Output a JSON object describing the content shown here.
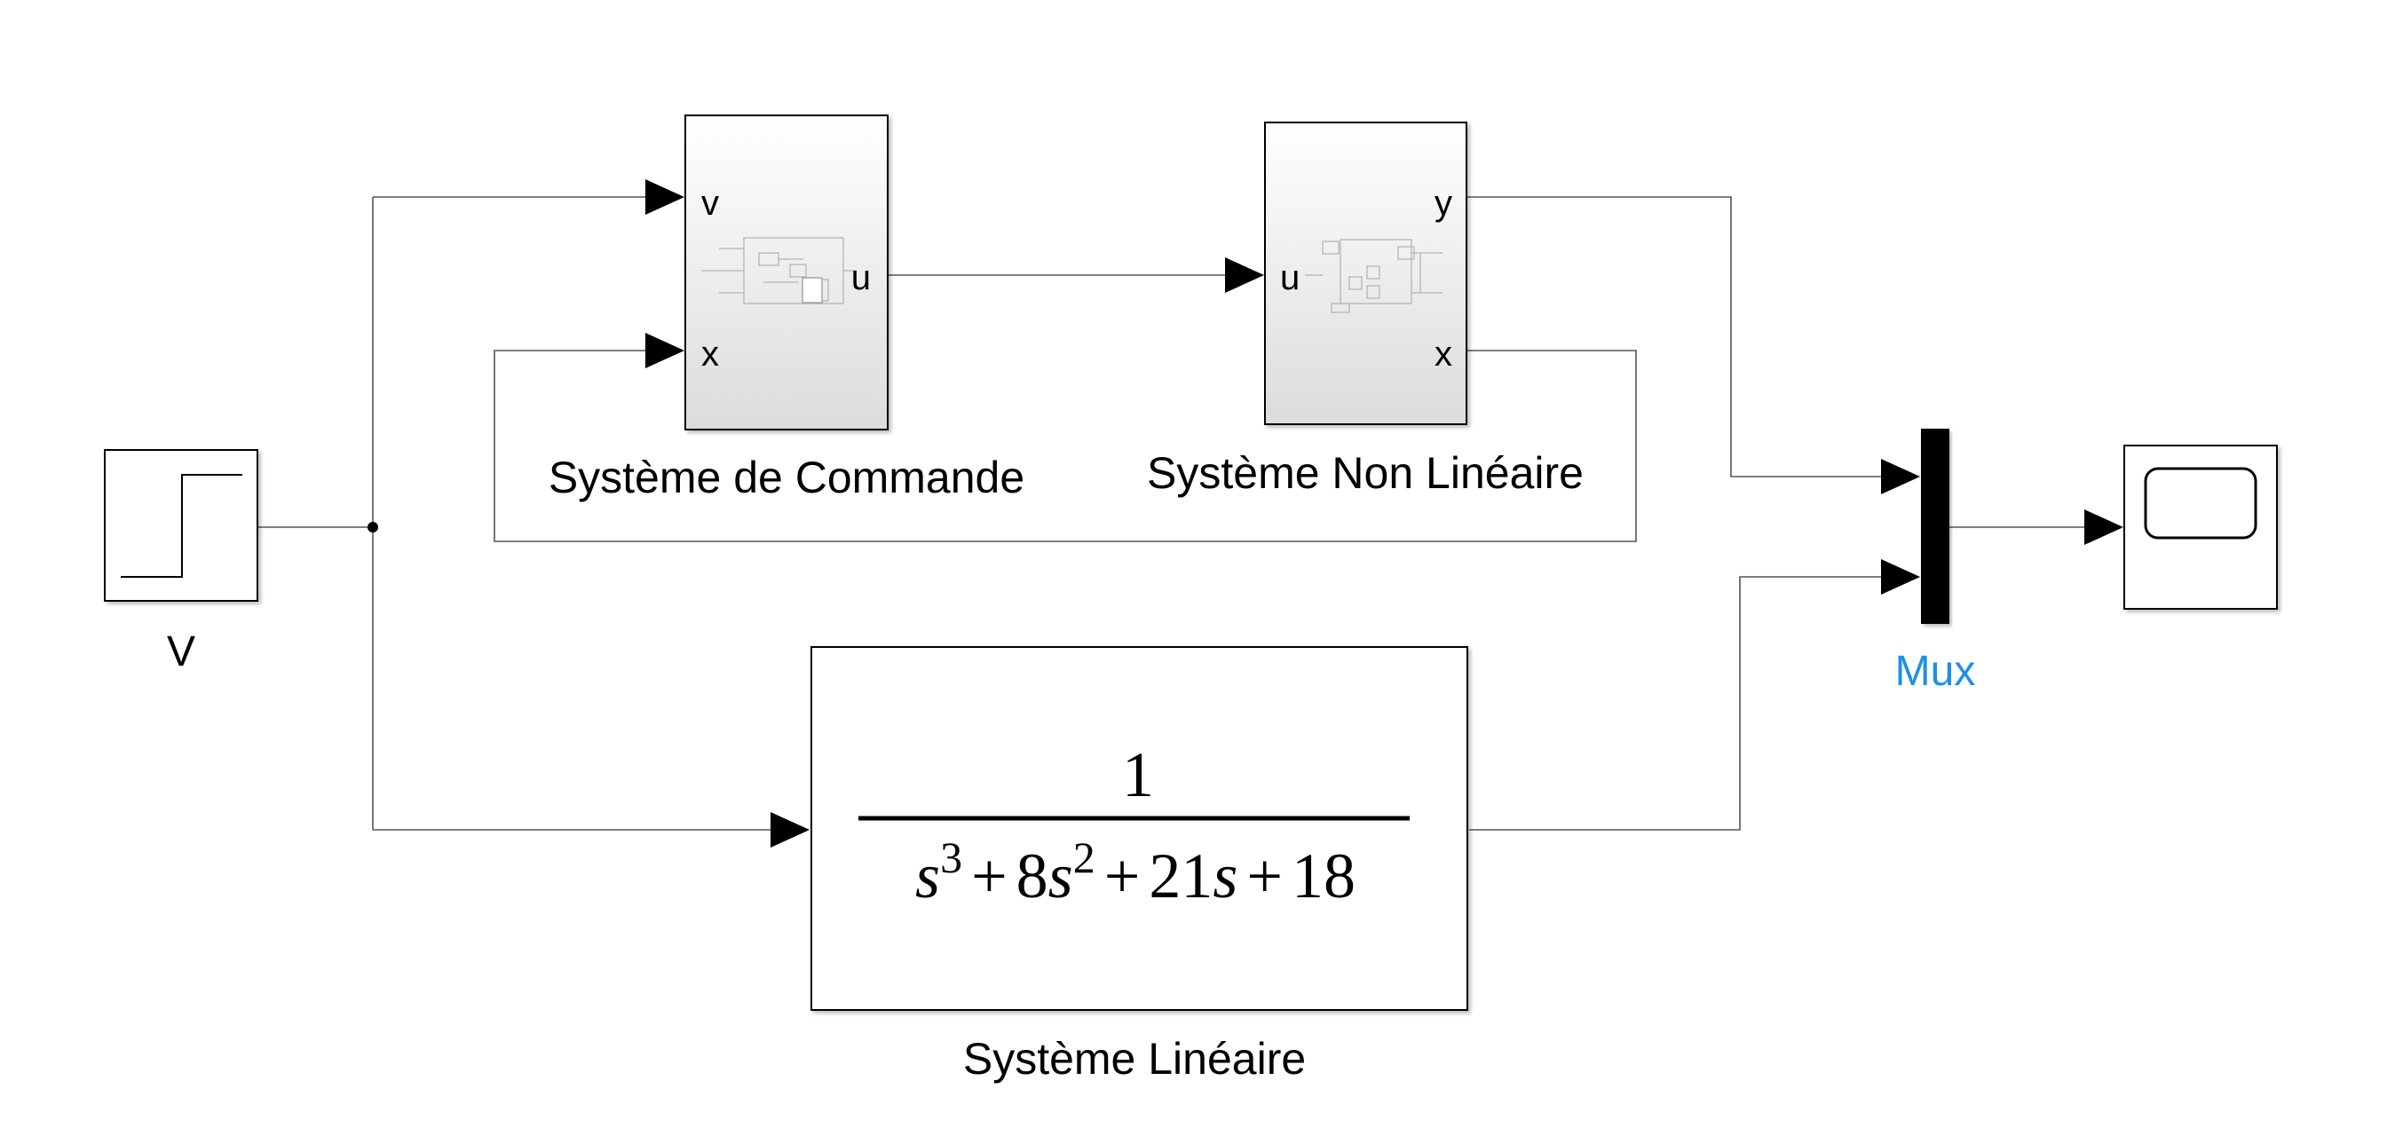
{
  "colors": {
    "background": "#ffffff",
    "block_border": "#000000",
    "wire": "#555555",
    "mux_label": "#1e90e6",
    "subsystem_gradient_top": "#ffffff",
    "subsystem_gradient_bottom": "#dcdcdc"
  },
  "step_block": {
    "label": "V",
    "icon": "step-icon"
  },
  "command_system": {
    "label": "Système de Commande",
    "inputs": [
      "v",
      "x"
    ],
    "outputs": [
      "u"
    ],
    "icon": "subsystem-preview-icon"
  },
  "nonlinear_system": {
    "label": "Système Non Linéaire",
    "inputs": [
      "u"
    ],
    "outputs": [
      "y",
      "x"
    ],
    "icon": "subsystem-preview-icon"
  },
  "linear_system": {
    "label": "Système Linéaire",
    "numerator": "1",
    "denominator": {
      "t1_var": "s",
      "t1_exp": "3",
      "op1": "+",
      "t2_coef": "8",
      "t2_var": "s",
      "t2_exp": "2",
      "op2": "+",
      "t3_coef": "21",
      "t3_var": "s",
      "op3": "+",
      "t4": "18"
    }
  },
  "mux": {
    "label": "Mux",
    "inputs": 2
  },
  "scope": {
    "icon": "scope-display-icon"
  }
}
